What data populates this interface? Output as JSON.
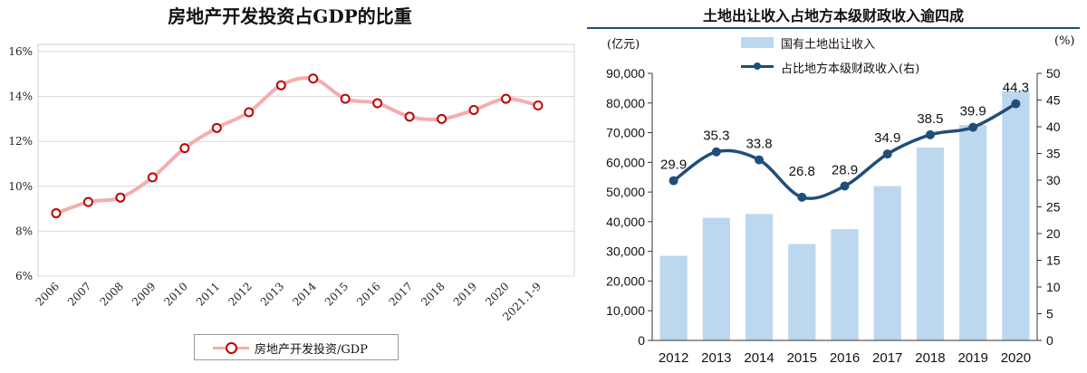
{
  "chart_data": [
    {
      "type": "line",
      "title": "房地产开发投资占GDP的比重",
      "x": [
        "2006",
        "2007",
        "2008",
        "2009",
        "2010",
        "2011",
        "2012",
        "2013",
        "2014",
        "2015",
        "2016",
        "2017",
        "2018",
        "2019",
        "2020",
        "2021.1-9"
      ],
      "series": [
        {
          "name": "房地产开发投资/GDP",
          "values": [
            8.8,
            9.3,
            9.5,
            10.4,
            11.7,
            12.6,
            13.3,
            14.5,
            14.8,
            13.9,
            13.7,
            13.1,
            13.0,
            13.4,
            13.9,
            13.6
          ]
        }
      ],
      "yticks": [
        "6%",
        "8%",
        "10%",
        "12%",
        "14%",
        "16%"
      ],
      "ylim": [
        6,
        16
      ],
      "grid": true,
      "legend_position": "bottom",
      "colors": {
        "line": "#f4aeae",
        "marker": "#c00000",
        "grid": "#d9d9d9"
      }
    },
    {
      "type": "bar",
      "title": "土地出让收入占地方本级财政收入逾四成",
      "categories": [
        "2012",
        "2013",
        "2014",
        "2015",
        "2016",
        "2017",
        "2018",
        "2019",
        "2020"
      ],
      "left_unit": "(亿元)",
      "right_unit": "(%)",
      "series": [
        {
          "name": "国有土地出让收入",
          "type": "bar",
          "axis": "left",
          "values": [
            28500,
            41300,
            42600,
            32500,
            37500,
            52000,
            65000,
            72600,
            84000
          ]
        },
        {
          "name": "占比地方本级财政收入(右)",
          "type": "line",
          "axis": "right",
          "values": [
            29.9,
            35.3,
            33.8,
            26.8,
            28.9,
            34.9,
            38.5,
            39.9,
            44.3
          ],
          "labels": [
            "29.9",
            "35.3",
            "33.8",
            "26.8",
            "28.9",
            "34.9",
            "38.5",
            "39.9",
            "44.3"
          ]
        }
      ],
      "left_ticks": [
        "0",
        "10,000",
        "20,000",
        "30,000",
        "40,000",
        "50,000",
        "60,000",
        "70,000",
        "80,000",
        "90,000"
      ],
      "right_ticks": [
        "0",
        "5",
        "10",
        "15",
        "20",
        "25",
        "30",
        "35",
        "40",
        "45",
        "50"
      ],
      "ylim_left": [
        0,
        90000
      ],
      "ylim_right": [
        0,
        50
      ],
      "legend_position": "top-center",
      "colors": {
        "bar": "#bdd7ee",
        "line": "#1f4e79",
        "title_rule": "#1f4e79"
      }
    }
  ]
}
